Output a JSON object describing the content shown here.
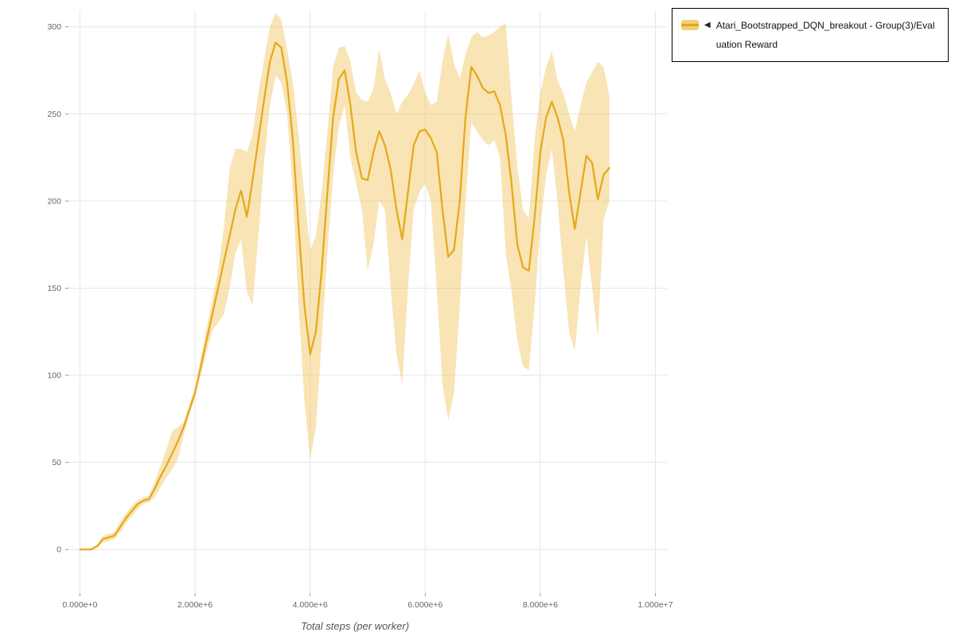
{
  "legend": {
    "collapse_icon": "◀"
  },
  "colors": {
    "line": "#E6A817",
    "band": "#EFC35B",
    "band_opacity": 0.45,
    "grid": "#e6e6e6",
    "tick_mark": "#999999",
    "tick_text": "#666666",
    "legend_border": "#000000"
  },
  "chart_data": {
    "type": "line",
    "title": "",
    "xlabel": "Total steps (per worker)",
    "ylabel": "",
    "grid": true,
    "legend_position": "top-right-outside",
    "xlim": [
      -200000,
      10200000
    ],
    "ylim": [
      -25,
      309
    ],
    "x_tick_values": [
      0,
      2000000,
      4000000,
      6000000,
      8000000,
      10000000
    ],
    "x_tick_labels": [
      "0.000e+0",
      "2.000e+6",
      "4.000e+6",
      "6.000e+6",
      "8.000e+6",
      "1.000e+7"
    ],
    "y_tick_values": [
      0,
      50,
      100,
      150,
      200,
      250,
      300
    ],
    "series": [
      {
        "name": "Atari_Bootstrapped_DQN_breakout - Group(3)/Evaluation Reward",
        "x_start": 0,
        "x_step": 100000,
        "mean": [
          0,
          0,
          0,
          2,
          6,
          7,
          8,
          13,
          18,
          22,
          26,
          28,
          29,
          35,
          42,
          48,
          55,
          62,
          70,
          80,
          90,
          105,
          120,
          135,
          150,
          165,
          180,
          195,
          206,
          191,
          212,
          235,
          258,
          280,
          291,
          288,
          268,
          235,
          185,
          140,
          112,
          125,
          160,
          205,
          248,
          270,
          275,
          255,
          228,
          213,
          212,
          228,
          240,
          232,
          218,
          195,
          178,
          205,
          232,
          240,
          241,
          236,
          228,
          195,
          168,
          172,
          200,
          248,
          277,
          272,
          265,
          262,
          263,
          255,
          238,
          210,
          175,
          162,
          160,
          190,
          228,
          248,
          257,
          248,
          235,
          205,
          184,
          205,
          226,
          222,
          201,
          215,
          219
        ],
        "lower": [
          0,
          0,
          0,
          1,
          4,
          5,
          6,
          10,
          15,
          19,
          23,
          26,
          27,
          30,
          36,
          41,
          46,
          52,
          65,
          77,
          87,
          100,
          113,
          126,
          130,
          135,
          150,
          170,
          178,
          148,
          140,
          180,
          222,
          255,
          272,
          268,
          250,
          205,
          140,
          85,
          52,
          70,
          120,
          170,
          215,
          243,
          255,
          225,
          210,
          195,
          160,
          175,
          200,
          195,
          150,
          112,
          95,
          150,
          195,
          205,
          210,
          200,
          150,
          95,
          74,
          90,
          140,
          200,
          245,
          240,
          235,
          232,
          235,
          225,
          170,
          148,
          120,
          105,
          103,
          140,
          185,
          215,
          230,
          200,
          160,
          125,
          114,
          150,
          180,
          150,
          122,
          190,
          200
        ],
        "upper": [
          0,
          0,
          1,
          3,
          8,
          9,
          10,
          16,
          21,
          25,
          28,
          30,
          31,
          39,
          48,
          57,
          68,
          70,
          73,
          83,
          93,
          110,
          127,
          143,
          160,
          185,
          218,
          230,
          230,
          228,
          238,
          262,
          281,
          300,
          308,
          304,
          287,
          268,
          238,
          203,
          172,
          180,
          205,
          240,
          277,
          288,
          289,
          280,
          262,
          258,
          257,
          264,
          287,
          270,
          262,
          250,
          257,
          261,
          267,
          275,
          262,
          255,
          257,
          280,
          296,
          279,
          270,
          284,
          294,
          297,
          294,
          295,
          297,
          300,
          302,
          258,
          220,
          195,
          190,
          235,
          262,
          277,
          286,
          269,
          262,
          250,
          240,
          255,
          268,
          274,
          280,
          277,
          260
        ]
      }
    ]
  }
}
